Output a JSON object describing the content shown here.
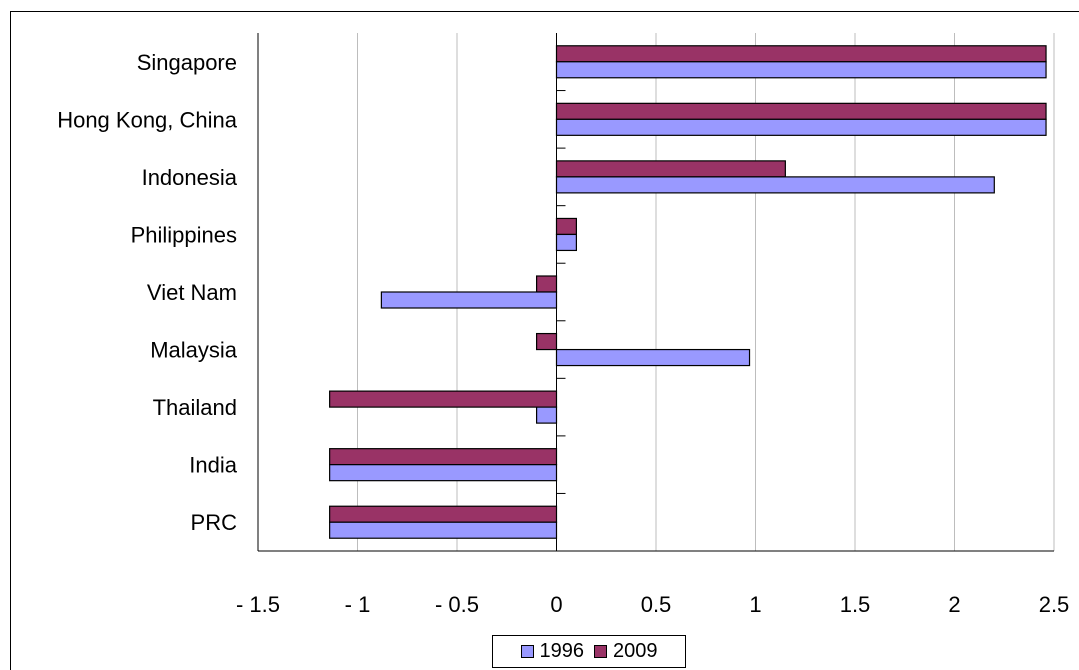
{
  "chart_data": {
    "type": "bar",
    "orientation": "horizontal",
    "categories": [
      "Singapore",
      "Hong Kong, China",
      "Indonesia",
      "Philippines",
      "Viet Nam",
      "Malaysia",
      "Thailand",
      "India",
      "PRC"
    ],
    "series": [
      {
        "name": "1996",
        "color": "#9999ff",
        "values": [
          2.46,
          2.46,
          2.2,
          0.1,
          -0.88,
          0.97,
          -0.1,
          -1.14,
          -1.14
        ]
      },
      {
        "name": "2009",
        "color": "#993366",
        "values": [
          2.46,
          2.46,
          1.15,
          0.1,
          -0.1,
          -0.1,
          -1.14,
          -1.14,
          -1.14
        ]
      }
    ],
    "xlim": [
      -1.5,
      2.5
    ],
    "xticks": [
      -1.5,
      -1,
      -0.5,
      0,
      0.5,
      1,
      1.5,
      2,
      2.5
    ],
    "xtick_labels": [
      "- 1.5",
      "- 1",
      "- 0.5",
      "0",
      "0.5",
      "1",
      "1.5",
      "2",
      "2.5"
    ],
    "grid": true,
    "legend_position": "bottom",
    "title": "",
    "xlabel": "",
    "ylabel": ""
  }
}
